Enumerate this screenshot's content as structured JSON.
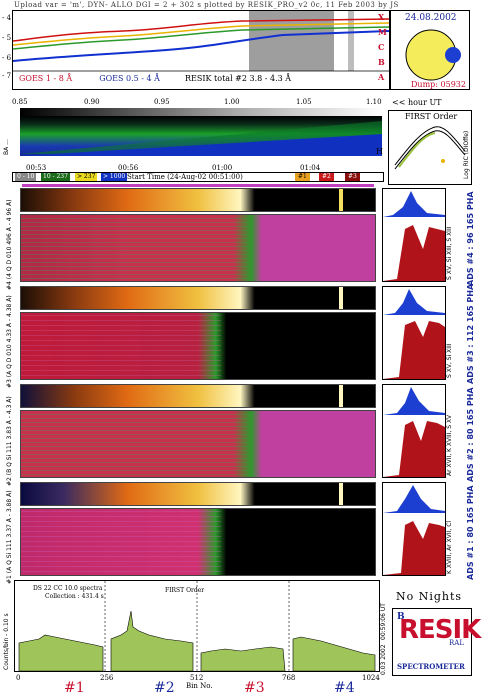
{
  "header": {
    "text": "Upload var = 'm', DYN- ALLO DGI =   2 + 302 s       plotted by RESIK_PRO_v2 0c, 11 Feb 2003 by JS"
  },
  "goes_panel": {
    "y_ticks": [
      "- 4",
      "- 5",
      "- 6",
      "- 7"
    ],
    "legend_goes1": "GOES 1 - 8 Å",
    "legend_goes05": "GOES 0.5 - 4 Å",
    "legend_resik": "RESIK total #2 3.8 - 4.3 Å",
    "flare_letters": [
      "X",
      "M",
      "C",
      "B",
      "A"
    ]
  },
  "sun": {
    "date": "24.08.2002",
    "dump": "Dump: 05932"
  },
  "scale_bar": {
    "ticks": [
      "0.85",
      "0.90",
      "0.95",
      "1.00",
      "1.05",
      "1.10"
    ],
    "side_label": "BA ...",
    "right_label": "H"
  },
  "hour_ut": "<< hour UT",
  "first_order": {
    "title": "FIRST Order",
    "ylabel": "Log RIC (DIOffe)"
  },
  "time_axis": {
    "ticks": [
      "00:53",
      "00:56",
      "01:00",
      "01:04"
    ]
  },
  "legend_bar": {
    "chips_left": [
      "0 - 10",
      "10 - 237",
      "> 237",
      "> 1000"
    ],
    "start_time": "Start Time (24-Aug-02 00:51:00)",
    "chips_right": [
      "#1",
      "#2",
      "#3"
    ]
  },
  "channels": [
    {
      "left_label": "#4 (4 Q D 010 496 Å - 4 96 Å)",
      "right_label": "S XV, Si XIII, S XIII",
      "pha_label": "ADS #4 : 96 165 PHA"
    },
    {
      "left_label": "#3 (A Q D 010 4.33 Å - 4.38 Å)",
      "right_label": "S XV, Si XIII",
      "pha_label": "ADS #3 : 112 165 PHA"
    },
    {
      "left_label": "#2 (B Q Si 111 3.83 Å - 4.3 Å)",
      "right_label": "Ar XVII, K XVIII, S XV",
      "pha_label": "ADS #2 : 80 165 PHA"
    },
    {
      "left_label": "#1 (A Q Si 111 3.37 Å - 3.88 Å)",
      "right_label": "K XVIII, Ar XVII, Cl",
      "pha_label": "ADS #1 : 80 165 PHA"
    }
  ],
  "bottom_spectrum": {
    "ylabel": "Counts/bin - 0.10 s",
    "note1": "DS 22 CC 10.0 spectra",
    "note2": "Collection : 431.4 s",
    "order": "FIRST Order",
    "x_ticks": [
      "0",
      "256",
      "512",
      "768",
      "1024"
    ],
    "xlabel": "Bin No.",
    "right_vertical": "00:59:06 UT",
    "right_vertical2": "0.03 2002",
    "section_labels": [
      "#1",
      "#2",
      "#3",
      "#4"
    ]
  },
  "no_nights": "No Nights",
  "logo": {
    "letters": "RESIK",
    "sub": "SPECTROMETER",
    "small_left": "B",
    "small_right": "RAL"
  },
  "colors": {
    "accent_red": "#c8102e",
    "accent_blue": "#1a2a9a",
    "pha_blue": "#1d3fd1",
    "pha_red": "#b0141a",
    "spectrum_green": "#9fc45a"
  }
}
